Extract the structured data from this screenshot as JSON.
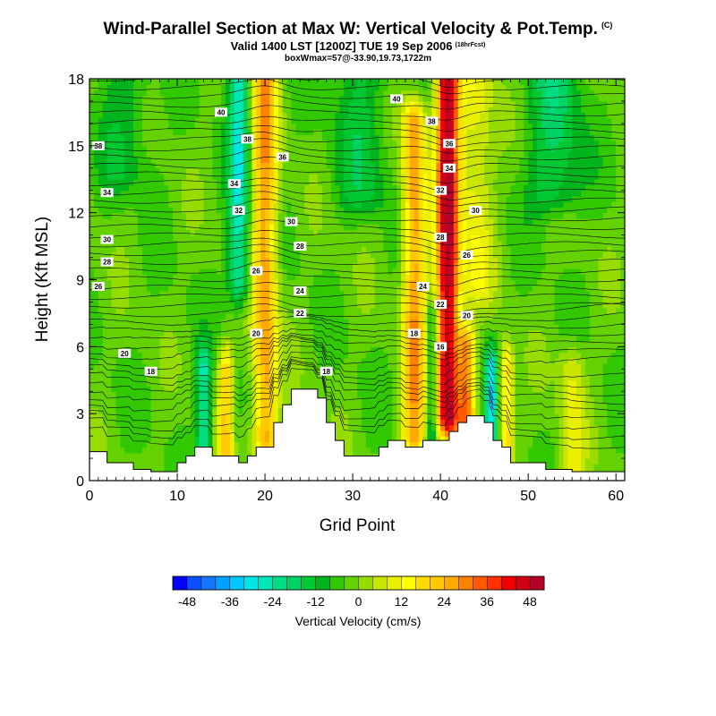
{
  "chart_data": {
    "type": "heatmap",
    "title": "Wind-Parallel Section at Max W: Vertical Velocity & Pot.Temp.",
    "title_mark": "(C)",
    "subtitle": "Valid 1400 LST [1200Z] TUE 19 Sep 2006",
    "subtitle_note": "(18hrFcst)",
    "subtitle2": "boxWmax=57@-33.90,19.73,1722m",
    "xlabel": "Grid Point",
    "ylabel": "Height (Kft MSL)",
    "xlim": [
      0,
      61
    ],
    "ylim": [
      0,
      18
    ],
    "xticks": [
      0,
      10,
      20,
      30,
      40,
      50,
      60
    ],
    "yticks": [
      0,
      3,
      6,
      9,
      12,
      15,
      18
    ],
    "colorbar": {
      "label": "Vertical Velocity (cm/s)",
      "ticks": [
        -48,
        -36,
        -24,
        -12,
        0,
        12,
        24,
        36,
        48
      ],
      "min": -52,
      "step": 4,
      "colors": [
        "#0000ff",
        "#0a50ff",
        "#1478ff",
        "#00a0ff",
        "#00c8ff",
        "#00e6e6",
        "#00e6b4",
        "#00dc82",
        "#00d264",
        "#00c832",
        "#00b41e",
        "#32c800",
        "#64d200",
        "#96dc00",
        "#c8e600",
        "#ebf000",
        "#ffff00",
        "#ffdc00",
        "#ffc800",
        "#ffaa00",
        "#ff8200",
        "#ff5a00",
        "#ff3200",
        "#f00000",
        "#d20014",
        "#b40028"
      ]
    },
    "terrain_kft": [
      1.3,
      1.3,
      0.8,
      0.8,
      0.8,
      0.5,
      0.5,
      0.4,
      0.4,
      0.4,
      0.8,
      1.1,
      1.5,
      1.5,
      1.1,
      1.1,
      1.1,
      0.8,
      1.1,
      1.5,
      1.5,
      2.6,
      3.4,
      4.1,
      4.1,
      4.1,
      3.7,
      2.6,
      1.8,
      1.1,
      1.1,
      1.1,
      1.1,
      1.5,
      1.8,
      1.8,
      1.5,
      1.5,
      1.8,
      1.8,
      1.8,
      2.2,
      2.6,
      2.9,
      2.9,
      2.6,
      1.8,
      1.5,
      0.8,
      0.8,
      0.8,
      0.8,
      0.5,
      0.5,
      0.5,
      0.4,
      0.4,
      0.4,
      0.4,
      0.4,
      0.4,
      0.4
    ],
    "w_features": [
      {
        "x": 40.8,
        "z0": 3.0,
        "z1": 18.0,
        "w": 54,
        "sx": 1.3
      },
      {
        "x": 20.0,
        "z0": 2.0,
        "z1": 18.0,
        "w": 30,
        "sx": 1.4
      },
      {
        "x": 37.0,
        "z0": 2.0,
        "z1": 16.0,
        "w": 30,
        "sx": 1.3
      },
      {
        "x": 43.0,
        "z0": 2.0,
        "z1": 6.0,
        "w": 30,
        "sx": 1.0
      },
      {
        "x": 15.5,
        "z0": 1.0,
        "z1": 5.0,
        "w": 22,
        "sx": 0.8
      },
      {
        "x": 47.5,
        "z0": 0.8,
        "z1": 5.0,
        "w": 24,
        "sx": 0.8
      },
      {
        "x": 55.0,
        "z0": 0.5,
        "z1": 5.0,
        "w": 12,
        "sx": 1.5
      },
      {
        "x": 44.0,
        "z0": 9.0,
        "z1": 18.0,
        "w": 14,
        "sx": 2.0
      },
      {
        "x": 17.0,
        "z0": 9.0,
        "z1": 18.0,
        "w": -24,
        "sx": 1.2
      },
      {
        "x": 13.0,
        "z0": 1.0,
        "z1": 5.0,
        "w": -22,
        "sx": 0.8
      },
      {
        "x": 45.8,
        "z0": 1.0,
        "z1": 5.0,
        "w": -26,
        "sx": 0.8
      },
      {
        "x": 39.0,
        "z0": 2.0,
        "z1": 7.0,
        "w": -16,
        "sx": 0.6
      },
      {
        "x": 53.0,
        "z0": 13.0,
        "z1": 18.0,
        "w": -14,
        "sx": 3.0
      },
      {
        "x": 31.0,
        "z0": 13.0,
        "z1": 18.0,
        "w": -10,
        "sx": 3.0
      },
      {
        "x": 4.0,
        "z0": 14.0,
        "z1": 18.0,
        "w": -8,
        "sx": 3.0
      }
    ],
    "theta_contour_labels": [
      {
        "text": "40",
        "x": 15.0,
        "y": 16.5
      },
      {
        "text": "38",
        "x": 18.0,
        "y": 15.3
      },
      {
        "text": "36",
        "x": 22.0,
        "y": 14.5
      },
      {
        "text": "34",
        "x": 16.5,
        "y": 13.3
      },
      {
        "text": "32",
        "x": 17.0,
        "y": 12.1
      },
      {
        "text": "30",
        "x": 23.0,
        "y": 11.6
      },
      {
        "text": "28",
        "x": 24.0,
        "y": 10.5
      },
      {
        "text": "26",
        "x": 19.0,
        "y": 9.4
      },
      {
        "text": "24",
        "x": 24.0,
        "y": 8.5
      },
      {
        "text": "22",
        "x": 24.0,
        "y": 7.5
      },
      {
        "text": "20",
        "x": 19.0,
        "y": 6.6
      },
      {
        "text": "18",
        "x": 27.0,
        "y": 4.9
      },
      {
        "text": "40",
        "x": 35.0,
        "y": 17.1
      },
      {
        "text": "38",
        "x": 39.0,
        "y": 16.1
      },
      {
        "text": "36",
        "x": 41.0,
        "y": 15.1
      },
      {
        "text": "34",
        "x": 41.0,
        "y": 14.0
      },
      {
        "text": "32",
        "x": 40.0,
        "y": 13.0
      },
      {
        "text": "30",
        "x": 44.0,
        "y": 12.1
      },
      {
        "text": "28",
        "x": 40.0,
        "y": 10.9
      },
      {
        "text": "26",
        "x": 43.0,
        "y": 10.1
      },
      {
        "text": "24",
        "x": 38.0,
        "y": 8.7
      },
      {
        "text": "22",
        "x": 40.0,
        "y": 7.9
      },
      {
        "text": "20",
        "x": 43.0,
        "y": 7.4
      },
      {
        "text": "18",
        "x": 37.0,
        "y": 6.6
      },
      {
        "text": "16",
        "x": 40.0,
        "y": 6.0
      },
      {
        "text": "38",
        "x": 1.0,
        "y": 15.0
      },
      {
        "text": "34",
        "x": 2.0,
        "y": 12.9
      },
      {
        "text": "30",
        "x": 2.0,
        "y": 10.8
      },
      {
        "text": "28",
        "x": 2.0,
        "y": 9.8
      },
      {
        "text": "26",
        "x": 1.0,
        "y": 8.7
      },
      {
        "text": "20",
        "x": 4.0,
        "y": 5.7
      },
      {
        "text": "18",
        "x": 7.0,
        "y": 4.9
      }
    ]
  }
}
